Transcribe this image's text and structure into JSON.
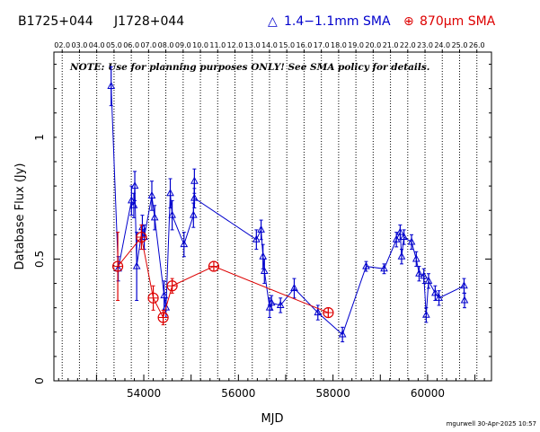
{
  "header": {
    "source_name": "B1725+044",
    "alt_name": "J1728+044",
    "legend": [
      {
        "symbol": "△",
        "label": "1.4−1.1mm SMA",
        "color": "#0000cc"
      },
      {
        "symbol": "⊕",
        "label": "870μm SMA",
        "color": "#dd0000"
      }
    ]
  },
  "note": "NOTE: Use for planning purposes ONLY!  See SMA policy for details.",
  "footer": "mgurwell 30-Apr-2025 10:57",
  "chart_data": {
    "type": "scatter",
    "xlabel": "MJD",
    "ylabel": "Database Flux (Jy)",
    "xlim": [
      52100,
      61350
    ],
    "ylim": [
      0,
      1.35
    ],
    "x_ticks": [
      54000,
      56000,
      58000,
      60000
    ],
    "x_tick_labels": [
      "54000",
      "56000",
      "58000",
      "60000"
    ],
    "y_ticks": [
      0,
      0.5,
      1
    ],
    "y_tick_labels": [
      "0",
      "0.5",
      "1"
    ],
    "year_labels": [
      "02.0",
      "03.0",
      "04.0",
      "05.0",
      "06.0",
      "07.0",
      "08.0",
      "09.0",
      "10.0",
      "11.0",
      "12.0",
      "13.0",
      "14.0",
      "15.0",
      "16.0",
      "17.0",
      "18.0",
      "19.0",
      "20.0",
      "21.0",
      "22.0",
      "23.0",
      "24.0",
      "25.0",
      "26.0"
    ],
    "year_mjd": [
      52275,
      52640,
      53005,
      53371,
      53736,
      54101,
      54466,
      54832,
      55197,
      55562,
      55927,
      56293,
      56658,
      57023,
      57388,
      57754,
      58119,
      58484,
      58849,
      59215,
      59580,
      59945,
      60310,
      60676,
      61041
    ],
    "series": [
      {
        "name": "1.4−1.1mm SMA",
        "color": "#0000cc",
        "marker": "triangle",
        "points": [
          {
            "x": 53310,
            "y": 1.21,
            "err": 0.08
          },
          {
            "x": 53460,
            "y": 0.46,
            "err": 0.05
          },
          {
            "x": 53740,
            "y": 0.74,
            "err": 0.06
          },
          {
            "x": 53790,
            "y": 0.72,
            "err": 0.05
          },
          {
            "x": 53810,
            "y": 0.8,
            "err": 0.06
          },
          {
            "x": 53850,
            "y": 0.47,
            "err": 0.14
          },
          {
            "x": 53970,
            "y": 0.63,
            "err": 0.05
          },
          {
            "x": 54010,
            "y": 0.59,
            "err": 0.05
          },
          {
            "x": 54170,
            "y": 0.76,
            "err": 0.06
          },
          {
            "x": 54230,
            "y": 0.67,
            "err": 0.05
          },
          {
            "x": 54430,
            "y": 0.35,
            "err": 0.06
          },
          {
            "x": 54470,
            "y": 0.3,
            "err": 0.04
          },
          {
            "x": 54560,
            "y": 0.77,
            "err": 0.06
          },
          {
            "x": 54600,
            "y": 0.68,
            "err": 0.06
          },
          {
            "x": 54850,
            "y": 0.56,
            "err": 0.05
          },
          {
            "x": 55050,
            "y": 0.68,
            "err": 0.05
          },
          {
            "x": 55070,
            "y": 0.82,
            "err": 0.05
          },
          {
            "x": 55070,
            "y": 0.75,
            "err": 0.04
          },
          {
            "x": 56380,
            "y": 0.58,
            "err": 0.04
          },
          {
            "x": 56480,
            "y": 0.62,
            "err": 0.04
          },
          {
            "x": 56520,
            "y": 0.51,
            "err": 0.05
          },
          {
            "x": 56550,
            "y": 0.45,
            "err": 0.05
          },
          {
            "x": 56660,
            "y": 0.3,
            "err": 0.04
          },
          {
            "x": 56700,
            "y": 0.32,
            "err": 0.03
          },
          {
            "x": 56890,
            "y": 0.31,
            "err": 0.03
          },
          {
            "x": 57180,
            "y": 0.38,
            "err": 0.04
          },
          {
            "x": 57680,
            "y": 0.28,
            "err": 0.03
          },
          {
            "x": 58200,
            "y": 0.19,
            "err": 0.03
          },
          {
            "x": 58700,
            "y": 0.47,
            "err": 0.02
          },
          {
            "x": 59080,
            "y": 0.46,
            "err": 0.02
          },
          {
            "x": 59340,
            "y": 0.58,
            "err": 0.03
          },
          {
            "x": 59420,
            "y": 0.61,
            "err": 0.03
          },
          {
            "x": 59450,
            "y": 0.51,
            "err": 0.03
          },
          {
            "x": 59500,
            "y": 0.59,
            "err": 0.03
          },
          {
            "x": 59660,
            "y": 0.57,
            "err": 0.03
          },
          {
            "x": 59760,
            "y": 0.5,
            "err": 0.03
          },
          {
            "x": 59820,
            "y": 0.44,
            "err": 0.03
          },
          {
            "x": 59920,
            "y": 0.43,
            "err": 0.03
          },
          {
            "x": 59970,
            "y": 0.27,
            "err": 0.03
          },
          {
            "x": 60020,
            "y": 0.41,
            "err": 0.03
          },
          {
            "x": 60160,
            "y": 0.36,
            "err": 0.03
          },
          {
            "x": 60240,
            "y": 0.34,
            "err": 0.03
          },
          {
            "x": 60770,
            "y": 0.39,
            "err": 0.03
          },
          {
            "x": 60780,
            "y": 0.33,
            "err": 0.03
          }
        ]
      },
      {
        "name": "870μm SMA",
        "color": "#dd0000",
        "marker": "circle-plus",
        "points": [
          {
            "x": 53450,
            "y": 0.47,
            "err": 0.14
          },
          {
            "x": 53950,
            "y": 0.59,
            "err": 0.05
          },
          {
            "x": 54200,
            "y": 0.34,
            "err": 0.05
          },
          {
            "x": 54410,
            "y": 0.26,
            "err": 0.03
          },
          {
            "x": 54600,
            "y": 0.39,
            "err": 0.03
          },
          {
            "x": 55480,
            "y": 0.47,
            "err": 0.02
          },
          {
            "x": 57900,
            "y": 0.28,
            "err": 0.02
          }
        ]
      }
    ]
  }
}
